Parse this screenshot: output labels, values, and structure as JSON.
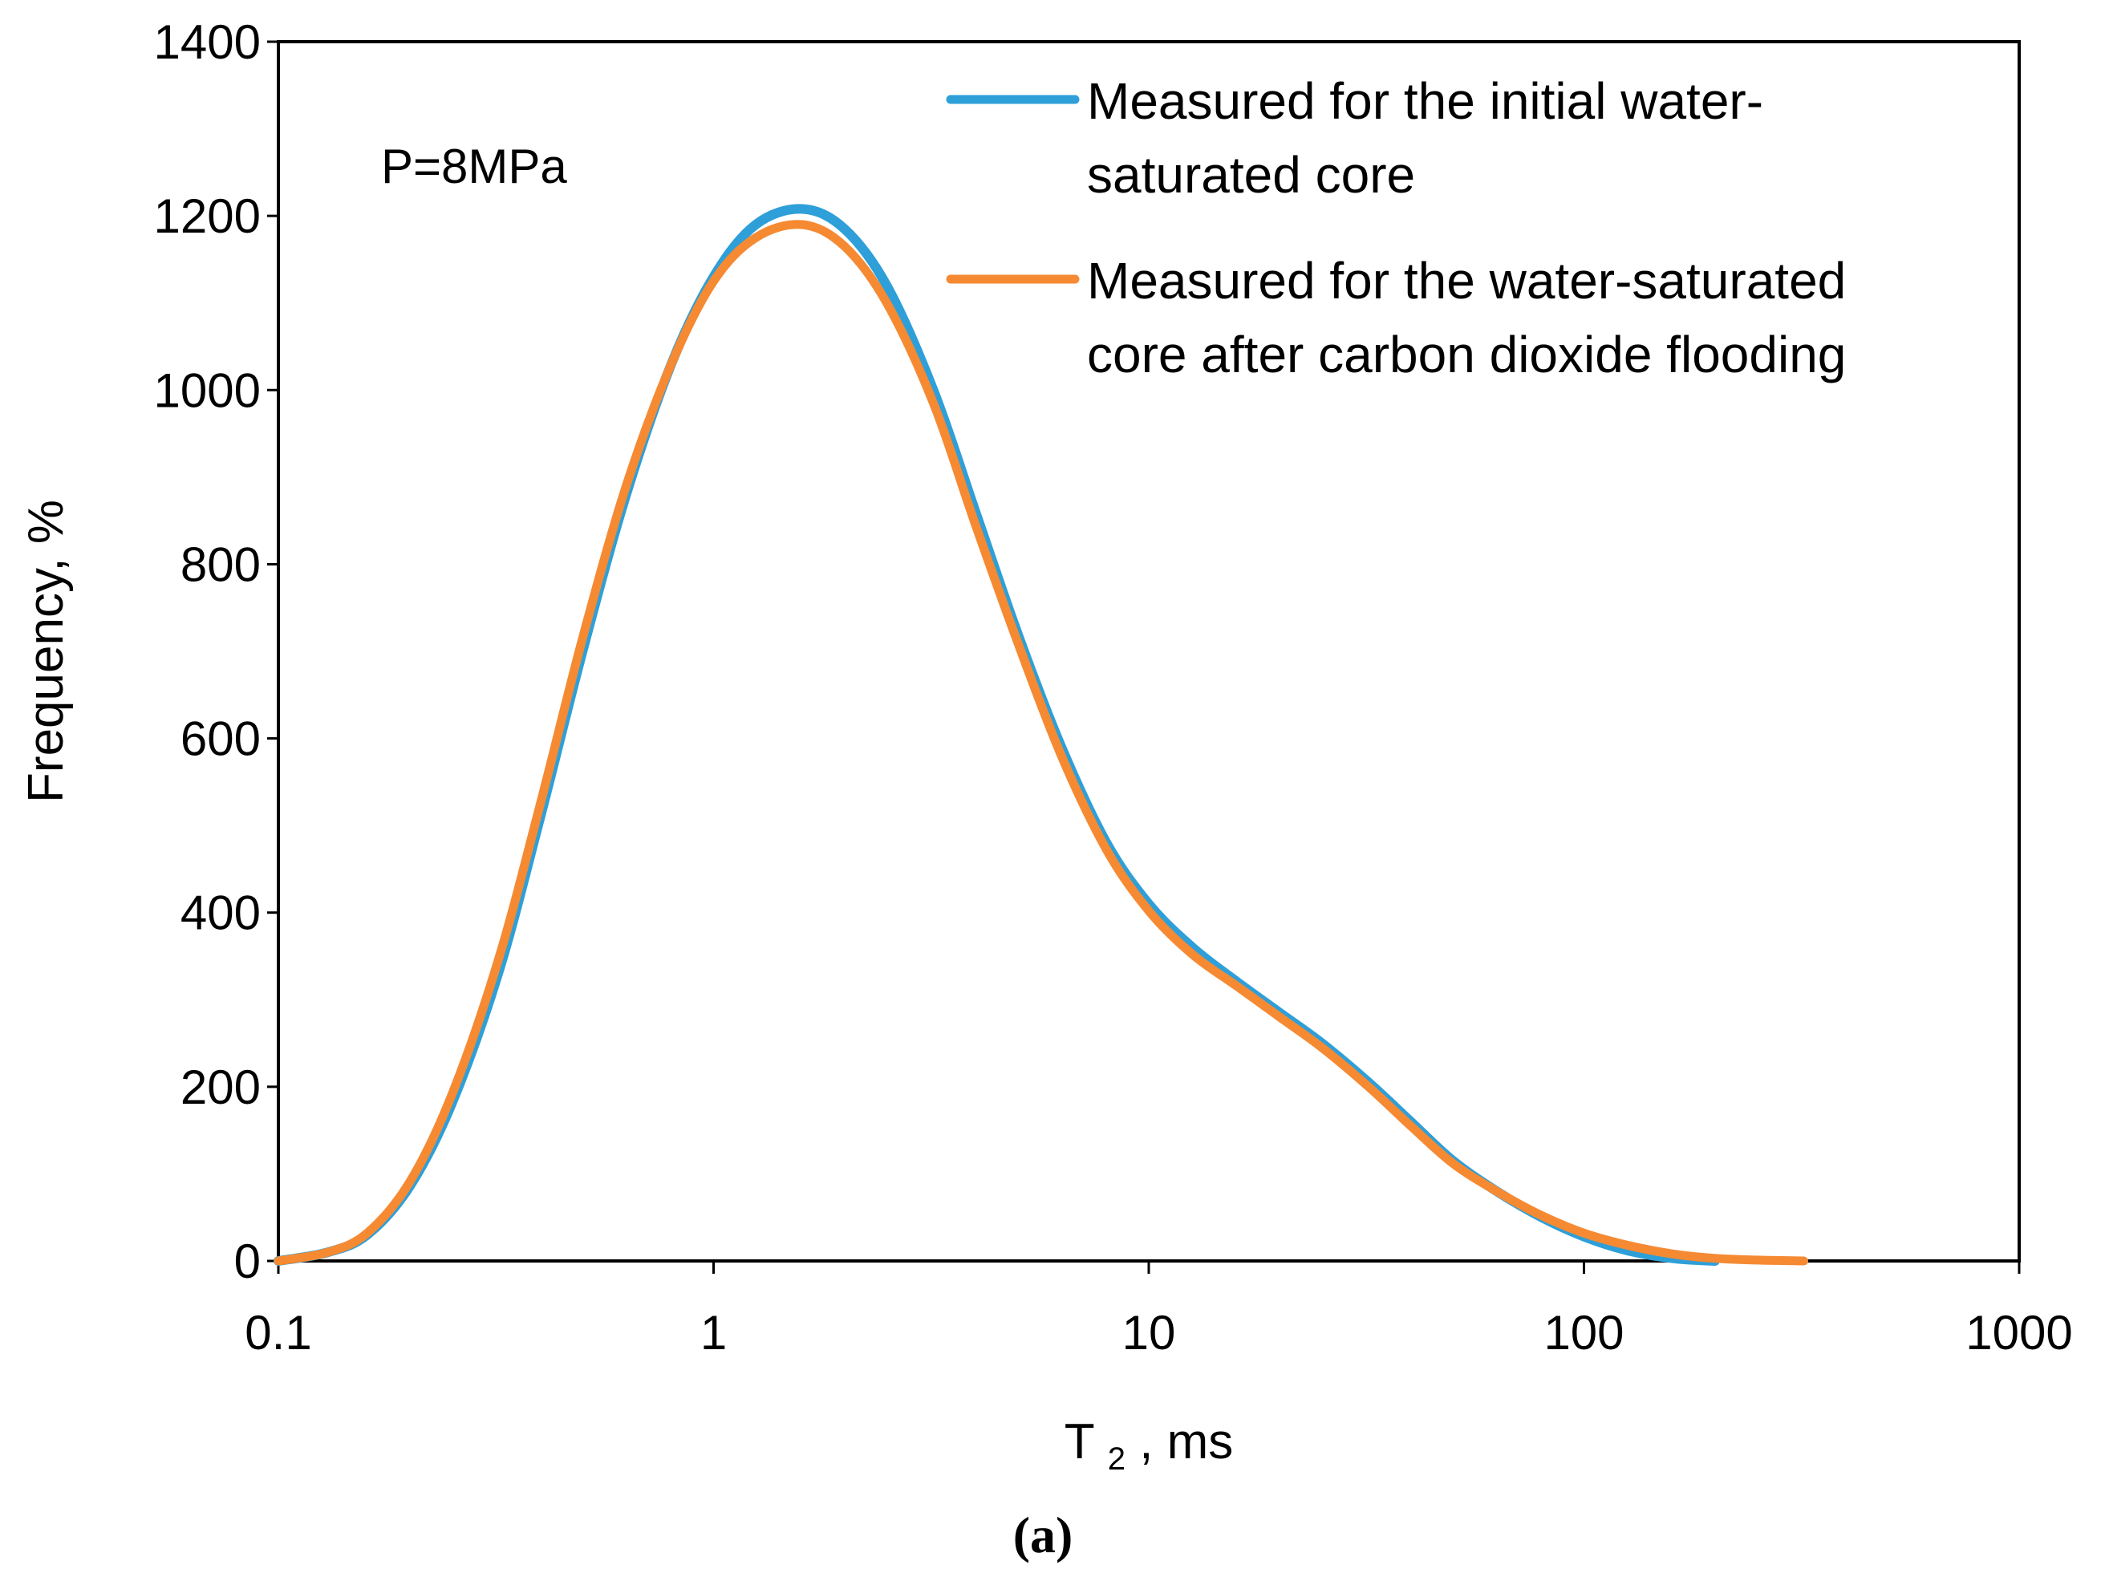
{
  "chart_data": {
    "type": "line",
    "title": "",
    "xlabel_main": "T",
    "xlabel_sub": "2",
    "xlabel_rest": " , ms",
    "ylabel": "Frequency, %",
    "x_scale": "log",
    "xlim": [
      0.1,
      1000
    ],
    "ylim": [
      0,
      1400
    ],
    "x_ticks": [
      0.1,
      1,
      10,
      100,
      1000
    ],
    "x_tick_labels": [
      "0.1",
      "1",
      "10",
      "100",
      "1000"
    ],
    "y_ticks": [
      0,
      200,
      400,
      600,
      800,
      1000,
      1200,
      1400
    ],
    "y_tick_labels": [
      "0",
      "200",
      "400",
      "600",
      "800",
      "1000",
      "1200",
      "1400"
    ],
    "grid": false,
    "legend_position": "top-right",
    "annotation": "P=8MPa",
    "panel_label": "(a)",
    "series": [
      {
        "name": "Measured for the initial water-saturated core",
        "legend_lines": [
          "Measured for the initial water-",
          "saturated core"
        ],
        "color": "#2E9FD8",
        "x": [
          0.1,
          0.13,
          0.16,
          0.2,
          0.25,
          0.32,
          0.4,
          0.5,
          0.63,
          0.8,
          1.0,
          1.25,
          1.6,
          2.0,
          2.5,
          3.2,
          4.0,
          5.0,
          6.3,
          8.0,
          10,
          12.6,
          16,
          20,
          25,
          32,
          40,
          50,
          63,
          80,
          100,
          126,
          160,
          200
        ],
        "values": [
          0,
          10,
          30,
          85,
          180,
          330,
          510,
          700,
          880,
          1030,
          1130,
          1190,
          1208,
          1185,
          1120,
          1000,
          860,
          720,
          590,
          480,
          410,
          360,
          320,
          285,
          250,
          205,
          160,
          115,
          80,
          50,
          28,
          12,
          3,
          0
        ]
      },
      {
        "name": "Measured for the water-saturated core after carbon dioxide flooding",
        "legend_lines": [
          "Measured for the water-saturated",
          "core after carbon dioxide flooding"
        ],
        "color": "#F58A33",
        "x": [
          0.1,
          0.13,
          0.16,
          0.2,
          0.25,
          0.32,
          0.4,
          0.5,
          0.63,
          0.8,
          1.0,
          1.25,
          1.6,
          2.0,
          2.5,
          3.2,
          4.0,
          5.0,
          6.3,
          8.0,
          10,
          12.6,
          16,
          20,
          25,
          32,
          40,
          50,
          63,
          80,
          100,
          126,
          160,
          200,
          250,
          320
        ],
        "values": [
          0,
          10,
          32,
          90,
          190,
          345,
          525,
          715,
          890,
          1030,
          1125,
          1175,
          1190,
          1165,
          1100,
          985,
          845,
          710,
          580,
          472,
          402,
          352,
          315,
          280,
          245,
          200,
          155,
          112,
          80,
          52,
          32,
          18,
          8,
          3,
          1,
          0
        ]
      }
    ]
  }
}
